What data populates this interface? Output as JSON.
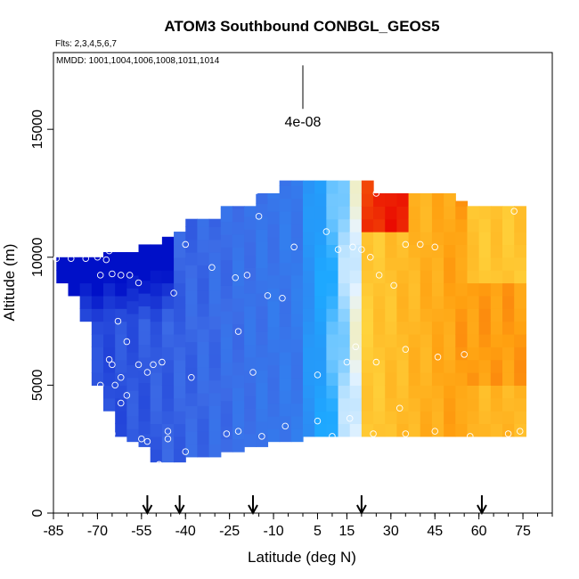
{
  "chart_data": {
    "type": "heatmap",
    "title": "ATOM3 Southbound CONBGL_GEOS5",
    "flights_note": "Flts: 2,3,4,5,6,7",
    "dates_note": "MMDD: 1001,1004,1006,1008,1011,1014",
    "xlabel": "Latitude (deg N)",
    "ylabel": "Altitude (m)",
    "xlim": [
      -85,
      85
    ],
    "ylim": [
      0,
      18000
    ],
    "x_ticks": [
      -85,
      -70,
      -55,
      -40,
      -25,
      -10,
      5,
      15,
      30,
      45,
      60,
      75
    ],
    "x_tick_labels": [
      "-85",
      "-70",
      "-55",
      "-40",
      "-25",
      "-10",
      "5",
      "15",
      "30",
      "45",
      "60",
      "75"
    ],
    "y_ticks": [
      0,
      5000,
      10000,
      15000
    ],
    "y_tick_labels": [
      "0",
      "5000",
      "10000",
      "15000"
    ],
    "scale_bar": {
      "label": "4e-08",
      "x": 0,
      "y_bottom": 15800,
      "y_top": 17500
    },
    "arrows_lat": [
      -53,
      -42,
      -17,
      20,
      61
    ],
    "colors": {
      "deep_blue": "#0010c8",
      "mid_blue": "#3c6be6",
      "light_blue": "#1ea8ff",
      "pale": "#e8f4ff",
      "yellow": "#ffe34a",
      "orange": "#ffa010",
      "red": "#e80000"
    },
    "curtain": {
      "lat_bins": [
        -84,
        -80,
        -76,
        -72,
        -68,
        -64,
        -60,
        -56,
        -52,
        -48,
        -44,
        -40,
        -36,
        -32,
        -28,
        -24,
        -20,
        -16,
        -12,
        -8,
        -4,
        0,
        4,
        8,
        12,
        16,
        20,
        24,
        28,
        32,
        36,
        40,
        44,
        48,
        52,
        56,
        60,
        64,
        68,
        72
      ],
      "lat_step": 4,
      "alt_step": 500,
      "alt_ranges": [
        [
          9000,
          10000
        ],
        [
          8500,
          10000
        ],
        [
          7500,
          10000
        ],
        [
          5000,
          10000
        ],
        [
          4000,
          10200
        ],
        [
          3000,
          10200
        ],
        [
          2800,
          10200
        ],
        [
          2600,
          10500
        ],
        [
          2000,
          10500
        ],
        [
          2000,
          10800
        ],
        [
          2000,
          11000
        ],
        [
          2200,
          11500
        ],
        [
          2200,
          11500
        ],
        [
          2200,
          11500
        ],
        [
          2400,
          12000
        ],
        [
          2400,
          12000
        ],
        [
          2600,
          12000
        ],
        [
          2600,
          12500
        ],
        [
          2800,
          12500
        ],
        [
          2800,
          13000
        ],
        [
          2800,
          13000
        ],
        [
          3000,
          13000
        ],
        [
          3000,
          13000
        ],
        [
          3000,
          13000
        ],
        [
          3000,
          13000
        ],
        [
          3000,
          13000
        ],
        [
          3000,
          13000
        ],
        [
          3000,
          12500
        ],
        [
          3000,
          12500
        ],
        [
          3000,
          12500
        ],
        [
          3000,
          12500
        ],
        [
          3000,
          12500
        ],
        [
          3000,
          12500
        ],
        [
          3000,
          12500
        ],
        [
          3000,
          12200
        ],
        [
          3000,
          12000
        ],
        [
          3000,
          12000
        ],
        [
          3000,
          12000
        ],
        [
          3000,
          12000
        ],
        [
          3000,
          12000
        ]
      ]
    },
    "observation_points": [
      [
        -84,
        9950
      ],
      [
        -79,
        9950
      ],
      [
        -74,
        9950
      ],
      [
        -70,
        10000
      ],
      [
        -69,
        9300
      ],
      [
        -67,
        9900
      ],
      [
        -66,
        10250
      ],
      [
        -65,
        9350
      ],
      [
        -61,
        10500
      ],
      [
        -62,
        9300
      ],
      [
        -59,
        9300
      ],
      [
        -57,
        10900
      ],
      [
        -56,
        9000
      ],
      [
        -63,
        7500
      ],
      [
        -60,
        6700
      ],
      [
        -66,
        6000
      ],
      [
        -65,
        5800
      ],
      [
        -62,
        5300
      ],
      [
        -64,
        5000
      ],
      [
        -69,
        5000
      ],
      [
        -60,
        4600
      ],
      [
        -62,
        4300
      ],
      [
        -56,
        5800
      ],
      [
        -51,
        5800
      ],
      [
        -53,
        5500
      ],
      [
        -48,
        5900
      ],
      [
        -38,
        5300
      ],
      [
        -44,
        8600
      ],
      [
        -40,
        10500
      ],
      [
        -46,
        11000
      ],
      [
        -31,
        9600
      ],
      [
        -23,
        9200
      ],
      [
        -19,
        9300
      ],
      [
        -22,
        7100
      ],
      [
        -17,
        5500
      ],
      [
        -16,
        12600
      ],
      [
        -15,
        11600
      ],
      [
        -12,
        8500
      ],
      [
        -7,
        8400
      ],
      [
        -3,
        10400
      ],
      [
        -6,
        3400
      ],
      [
        -2,
        2500
      ],
      [
        -26,
        3100
      ],
      [
        -22,
        3200
      ],
      [
        -14,
        3000
      ],
      [
        -40,
        2400
      ],
      [
        -46,
        3200
      ],
      [
        -46,
        2900
      ],
      [
        -55,
        2900
      ],
      [
        -53,
        2800
      ],
      [
        -66,
        3300
      ],
      [
        -65,
        3100
      ],
      [
        5,
        5400
      ],
      [
        5,
        3600
      ],
      [
        8,
        11000
      ],
      [
        12,
        10300
      ],
      [
        17,
        10400
      ],
      [
        20,
        10300
      ],
      [
        23,
        10000
      ],
      [
        26,
        9300
      ],
      [
        31,
        8900
      ],
      [
        35,
        10500
      ],
      [
        40,
        10500
      ],
      [
        45,
        10400
      ],
      [
        25,
        12500
      ],
      [
        72,
        11800
      ],
      [
        18,
        6500
      ],
      [
        15,
        5900
      ],
      [
        25,
        5900
      ],
      [
        35,
        6400
      ],
      [
        46,
        6100
      ],
      [
        55,
        6200
      ],
      [
        10,
        3000
      ],
      [
        16,
        3700
      ],
      [
        24,
        3100
      ],
      [
        33,
        4100
      ],
      [
        35,
        3100
      ],
      [
        45,
        3200
      ],
      [
        57,
        3000
      ],
      [
        70,
        3100
      ],
      [
        74,
        3200
      ],
      [
        -49,
        1900
      ]
    ]
  }
}
